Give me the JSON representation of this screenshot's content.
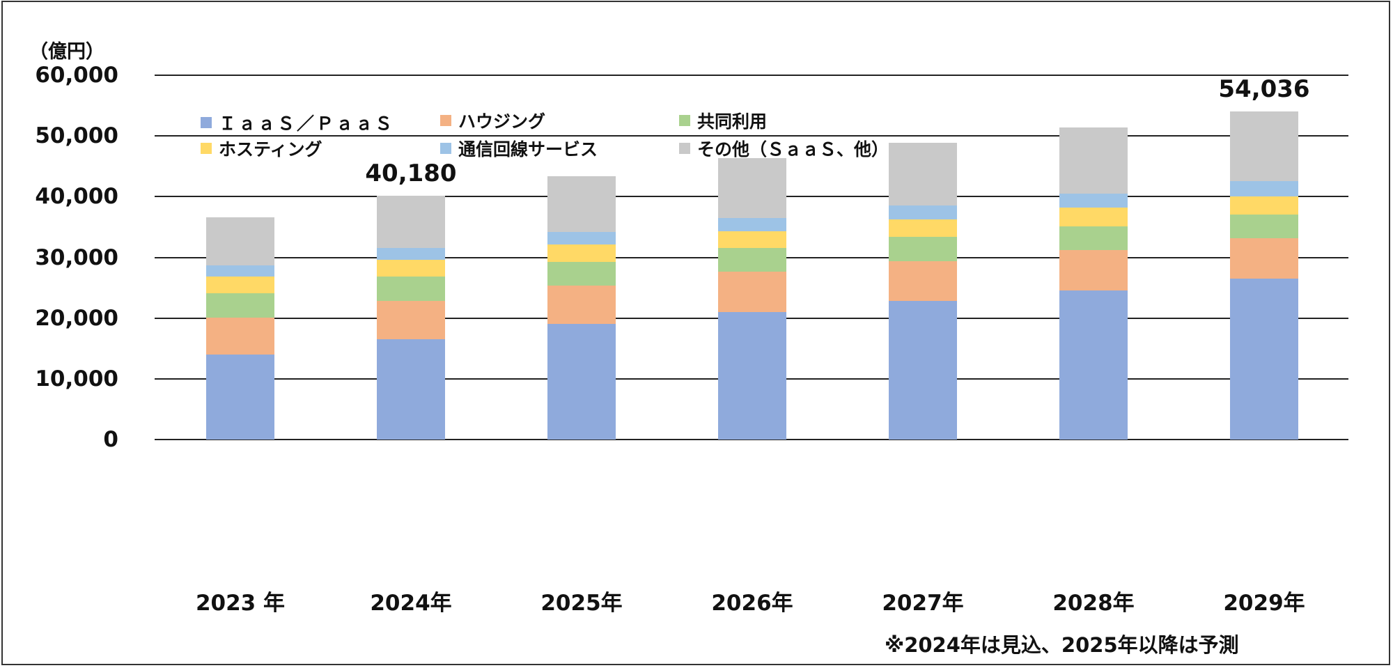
{
  "chart_data": {
    "type": "bar",
    "stacked": true,
    "title": "",
    "ylabel": "（億円）",
    "xlabel": "",
    "ylim": [
      0,
      60000
    ],
    "yticks": [
      "60,000",
      "50,000",
      "40,000",
      "30,000",
      "20,000",
      "10,000",
      "0"
    ],
    "grid": true,
    "legend_position": "top-inside",
    "categories": [
      "2023 年",
      "2024年",
      "2025年",
      "2026年",
      "2027年",
      "2028年",
      "2029年"
    ],
    "series": [
      {
        "name": "ＩａａＳ／ＰａａＳ",
        "color": "#8faadc",
        "values": [
          14000,
          16550,
          19000,
          21050,
          22850,
          24600,
          26450
        ]
      },
      {
        "name": "ハウジング",
        "color": "#f4b183",
        "values": [
          6100,
          6300,
          6400,
          6550,
          6550,
          6650,
          6750
        ]
      },
      {
        "name": "共同利用",
        "color": "#a9d18e",
        "values": [
          4000,
          3950,
          3900,
          3900,
          3950,
          3900,
          3800
        ]
      },
      {
        "name": "ホスティング",
        "color": "#ffd966",
        "values": [
          2800,
          2850,
          2800,
          2850,
          2850,
          3000,
          3000
        ]
      },
      {
        "name": "通信回線サービス",
        "color": "#9dc3e6",
        "values": [
          1800,
          1850,
          2050,
          2100,
          2300,
          2300,
          2550
        ]
      },
      {
        "name": "その他（ＳａａＳ、他）",
        "color": "#c9c9c9",
        "values": [
          7850,
          8680,
          9200,
          9850,
          10350,
          10950,
          11486
        ]
      }
    ],
    "totals": [
      36550,
      40180,
      43350,
      46300,
      48850,
      51400,
      54036
    ],
    "annotations": [
      {
        "category": "2024年",
        "text": "40,180"
      },
      {
        "category": "2029年",
        "text": "54,036"
      }
    ],
    "footnote": "※2024年は見込、2025年以降は予測"
  },
  "labels": {
    "unit": "（億円）",
    "note": "※2024年は見込、2025年以降は予測",
    "legend": [
      "ＩａａＳ／ＰａａＳ",
      "ハウジング",
      "共同利用",
      "ホスティング",
      "通信回線サービス",
      "その他（ＳａａＳ、他）"
    ],
    "total_2024": "40,180",
    "total_2029": "54,036"
  }
}
